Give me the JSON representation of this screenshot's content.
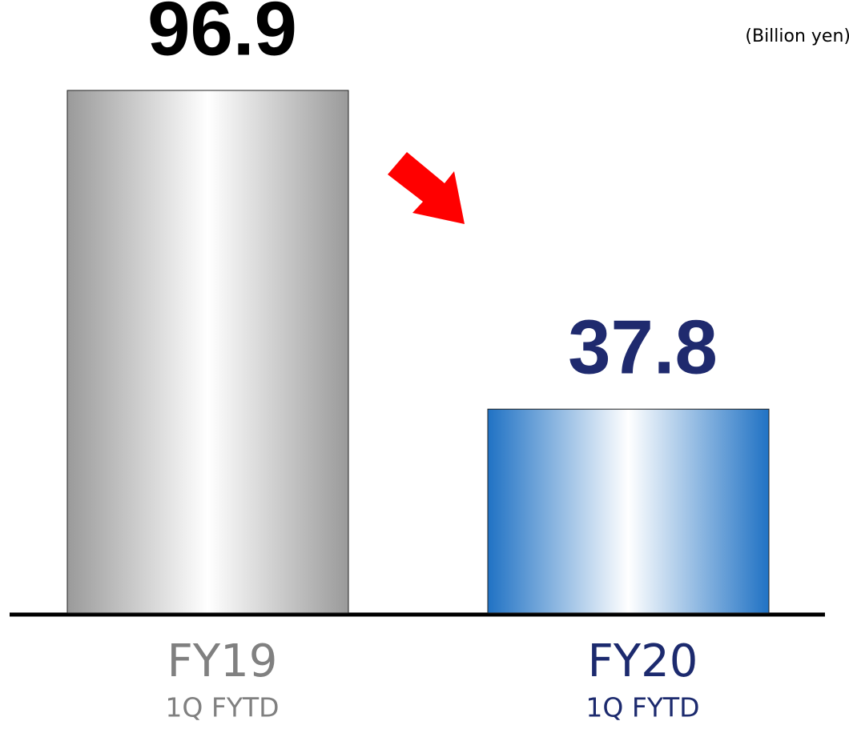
{
  "chart_data": {
    "type": "bar",
    "unit": "(Billion yen)",
    "categories": [
      "FY19",
      "FY20"
    ],
    "category_sublabels": [
      "1Q FYTD",
      "1Q FYTD"
    ],
    "values": [
      96.9,
      37.8
    ],
    "colors": [
      "#9a9a9a",
      "#2072c4"
    ],
    "value_label_colors": [
      "#000000",
      "#1f2a6e"
    ],
    "category_label_colors": [
      "#808080",
      "#1c2a6e"
    ]
  }
}
